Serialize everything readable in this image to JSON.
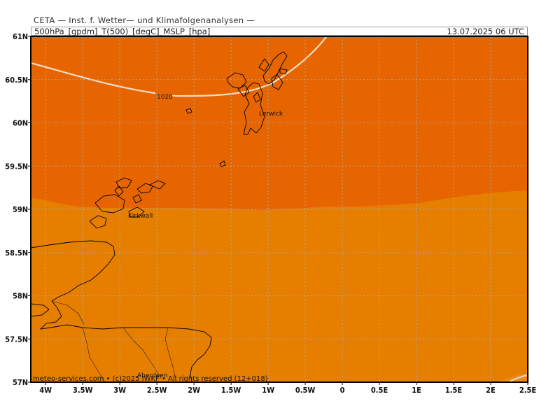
{
  "header": {
    "title": "CETA — Inst. f. Wetter— und Klimafolgenanalysen —",
    "fields": "500hPa_[gpdm]_T(500)_[degC]_MSLP_[hpa]",
    "datetime": "13.07.2025 06 UTC"
  },
  "axes": {
    "lat_labels": [
      "61N",
      "60.5N",
      "60N",
      "59.5N",
      "59N",
      "58.5N",
      "58N",
      "57.5N",
      "57N"
    ],
    "lon_labels": [
      "4W",
      "3.5W",
      "3W",
      "2.5W",
      "2W",
      "1.5W",
      "1W",
      "0.5W",
      "0",
      "0.5E",
      "1E",
      "1.5E",
      "2E",
      "2.5E"
    ]
  },
  "map": {
    "lat_range": [
      57,
      61
    ],
    "lon_range": [
      -4.2,
      2.5
    ],
    "colors": {
      "field_north": "#e66500",
      "field_south": "#e67f00",
      "field_south_edge": "#ea8a1c",
      "isobar": "#f3dcc4",
      "coastline": "#000000",
      "grid": "#a8a8a8"
    },
    "isobar_label": "1020",
    "places": [
      "Lerwick",
      "Kirkwall",
      "Aberdeen"
    ]
  },
  "footer": {
    "copyright": "meteo-services.com • (c)2025 IWKF • All rights reserved (12+018)"
  }
}
